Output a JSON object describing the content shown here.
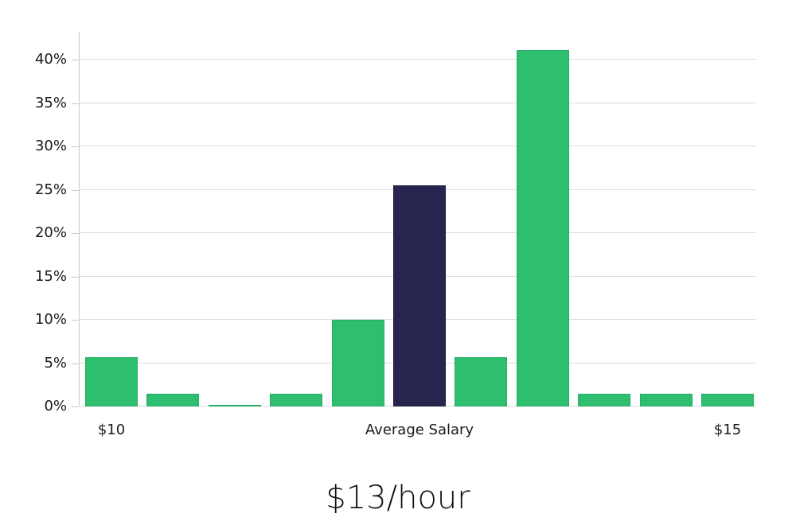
{
  "title": "$13/hour",
  "chart_data": {
    "type": "bar",
    "title": "$13/hour",
    "xlabel": "",
    "ylabel": "",
    "categories": [
      "$10",
      "",
      "",
      "",
      "",
      "Average Salary",
      "",
      "",
      "",
      "",
      "$15"
    ],
    "values": [
      5.7,
      1.5,
      0.1,
      1.5,
      10.0,
      25.5,
      5.7,
      41.1,
      1.5,
      1.5,
      1.5
    ],
    "highlight_index": 5,
    "bar_color": "#2dbe70",
    "bar_border_color": "#29ab66",
    "highlight_color": "#272450",
    "highlight_border_color": "#1e1c40",
    "y_ticks": [
      {
        "value": 0,
        "label": "0%"
      },
      {
        "value": 5,
        "label": "5%"
      },
      {
        "value": 10,
        "label": "10%"
      },
      {
        "value": 15,
        "label": "15%"
      },
      {
        "value": 20,
        "label": "20%"
      },
      {
        "value": 25,
        "label": "25%"
      },
      {
        "value": 30,
        "label": "30%"
      },
      {
        "value": 35,
        "label": "35%"
      },
      {
        "value": 40,
        "label": "40%"
      }
    ],
    "x_axis_labels": [
      {
        "text": "$10",
        "bar_index": 0
      },
      {
        "text": "Average Salary",
        "bar_index": 5
      },
      {
        "text": "$15",
        "bar_index": 10
      }
    ],
    "ylim": [
      0,
      43.2
    ],
    "grid": true,
    "legend": "none",
    "gridline_color": "#dcdcdc",
    "axis_color": "#c8c8c8",
    "text_color": "#1a1a1a"
  }
}
